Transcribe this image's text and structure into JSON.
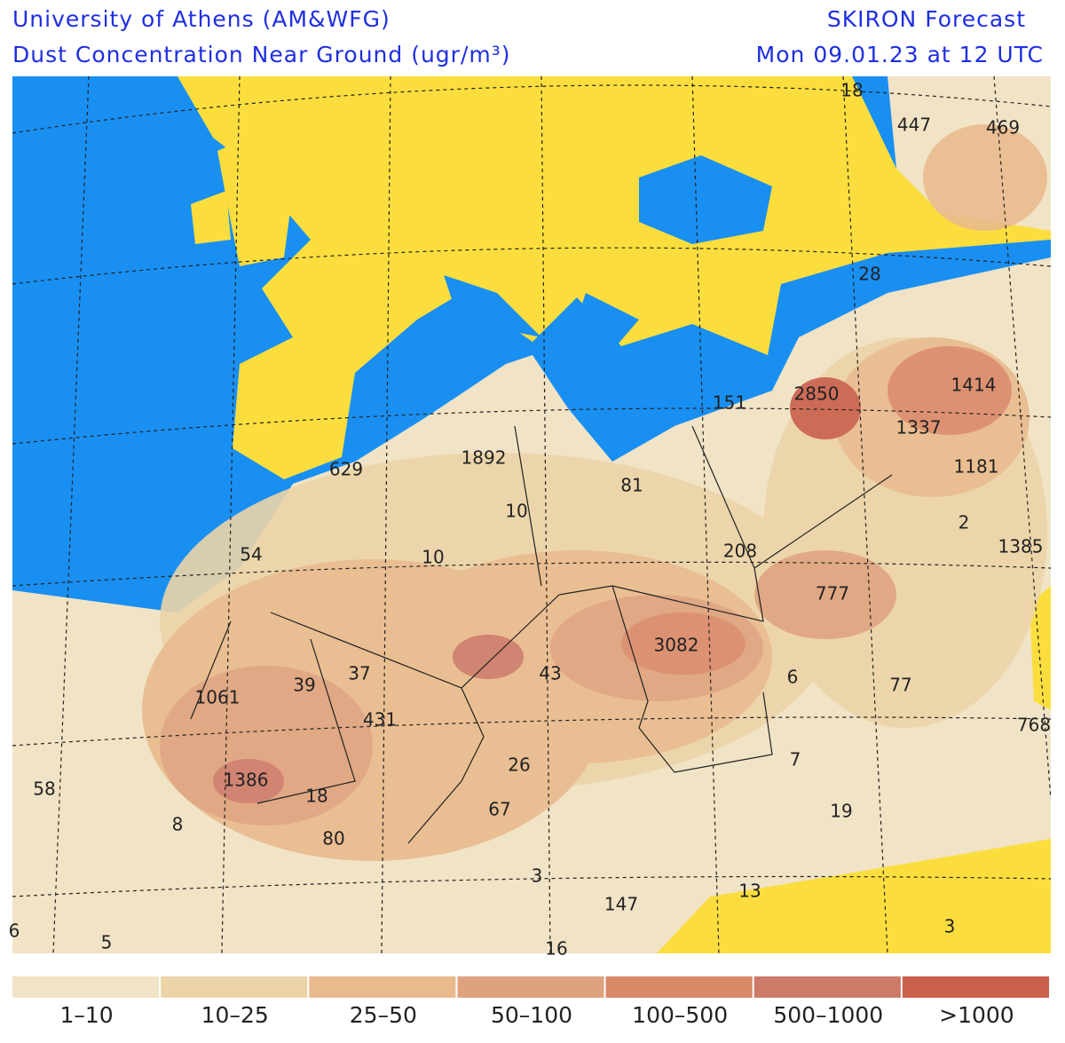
{
  "header": {
    "title": "University of Athens (AM&WFG)",
    "subtitle": "Dust Concentration Near Ground (ugr/m³)",
    "product": "SKIRON Forecast",
    "valid_time": "Mon 09.01.23 at 12 UTC"
  },
  "map": {
    "labels": [
      18,
      447,
      469,
      28,
      1414,
      2850,
      151,
      1337,
      1181,
      1892,
      629,
      81,
      10,
      2,
      1385,
      54,
      10,
      208,
      777,
      3082,
      43,
      37,
      39,
      1061,
      6,
      77,
      431,
      768,
      26,
      7,
      1386,
      58,
      18,
      8,
      67,
      19,
      80,
      3,
      13,
      147,
      3,
      6,
      5,
      16
    ]
  },
  "legend": {
    "items": [
      {
        "label": "1–10",
        "color": "#f1e3c6"
      },
      {
        "label": "10–25",
        "color": "#ecd4a8"
      },
      {
        "label": "25–50",
        "color": "#e9ba8d"
      },
      {
        "label": "50–100",
        "color": "#dfa27e"
      },
      {
        "label": "100–500",
        "color": "#da8a69"
      },
      {
        "label": "500–1000",
        "color": "#cd7a68"
      },
      {
        "label": ">1000",
        "color": "#c9604c"
      }
    ]
  }
}
